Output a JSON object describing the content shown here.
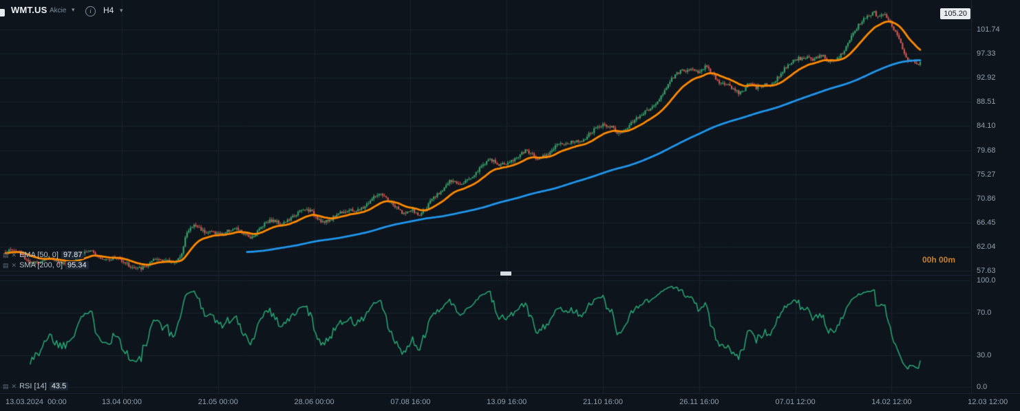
{
  "header": {
    "symbol": "WMT.US",
    "instrument_type": "Akcie",
    "timeframe": "H4"
  },
  "price_badge": "105.20",
  "countdown": "00h 00m",
  "legend": {
    "ema": {
      "label": "EMA [50, 0]",
      "value": "97.87"
    },
    "sma": {
      "label": "SMA [200, 0]",
      "value": "95.34"
    },
    "rsi": {
      "label": "RSI [14]",
      "value": "43.5"
    }
  },
  "colors": {
    "background": "#0d141c",
    "grid": "#1a222c",
    "axis_text": "#93a0ac",
    "candle_up": "#39a26a",
    "candle_down": "#d25750",
    "ema": "#ff8a00",
    "sma": "#1f97ee",
    "rsi": "#27a877",
    "countdown": "#c9802a",
    "badge_bg": "#e9edf1",
    "badge_text": "#10161d"
  },
  "chart_data": {
    "type": "candlestick",
    "symbol": "WMT.US",
    "timeframe": "H4",
    "title": "WMT.US Akcie H4 with EMA(50), SMA(200) and RSI(14)",
    "grid": true,
    "legend_position": "bottom-left overlays",
    "y_ticks": [
      "101.74",
      "97.33",
      "92.92",
      "88.51",
      "84.10",
      "79.68",
      "75.27",
      "70.86",
      "66.45",
      "62.04",
      "57.63"
    ],
    "ylim": [
      57.63,
      105.6
    ],
    "x_ticks": [
      "13.03.2024  00:00",
      "13.04 00:00",
      "21.05 00:00",
      "28.06 00:00",
      "07.08 16:00",
      "13.09 16:00",
      "21.10 16:00",
      "26.11 16:00",
      "07.01 12:00",
      "14.02 12:00",
      "12.03 12:00"
    ],
    "high_marker": 105.2,
    "data_extends_to_x_fraction": 0.948,
    "price_keyframes_format": "[fraction_of_time_axis, close_price]",
    "price_keyframes": [
      [
        0.0,
        60.0
      ],
      [
        0.015,
        60.8
      ],
      [
        0.03,
        59.9
      ],
      [
        0.05,
        60.2
      ],
      [
        0.07,
        59.6
      ],
      [
        0.09,
        60.1
      ],
      [
        0.11,
        59.5
      ],
      [
        0.128,
        58.8
      ],
      [
        0.14,
        59.4
      ],
      [
        0.155,
        59.8
      ],
      [
        0.17,
        59.5
      ],
      [
        0.181,
        59.9
      ],
      [
        0.187,
        63.6
      ],
      [
        0.195,
        64.6
      ],
      [
        0.205,
        64.1
      ],
      [
        0.215,
        65.0
      ],
      [
        0.225,
        64.5
      ],
      [
        0.24,
        65.6
      ],
      [
        0.255,
        65.1
      ],
      [
        0.27,
        66.3
      ],
      [
        0.285,
        66.0
      ],
      [
        0.3,
        67.2
      ],
      [
        0.315,
        67.8
      ],
      [
        0.33,
        67.3
      ],
      [
        0.345,
        68.5
      ],
      [
        0.36,
        69.3
      ],
      [
        0.375,
        70.2
      ],
      [
        0.385,
        70.6
      ],
      [
        0.395,
        69.8
      ],
      [
        0.405,
        68.9
      ],
      [
        0.415,
        67.6
      ],
      [
        0.421,
        68.2
      ],
      [
        0.428,
        67.1
      ],
      [
        0.435,
        69.2
      ],
      [
        0.442,
        71.8
      ],
      [
        0.45,
        73.2
      ],
      [
        0.46,
        74.2
      ],
      [
        0.47,
        73.6
      ],
      [
        0.48,
        74.8
      ],
      [
        0.49,
        75.8
      ],
      [
        0.5,
        76.6
      ],
      [
        0.51,
        76.1
      ],
      [
        0.52,
        77.4
      ],
      [
        0.53,
        78.6
      ],
      [
        0.54,
        79.5
      ],
      [
        0.55,
        79.0
      ],
      [
        0.56,
        80.2
      ],
      [
        0.57,
        80.8
      ],
      [
        0.58,
        80.3
      ],
      [
        0.59,
        80.9
      ],
      [
        0.6,
        81.6
      ],
      [
        0.61,
        82.4
      ],
      [
        0.62,
        83.2
      ],
      [
        0.628,
        84.0
      ],
      [
        0.635,
        83.4
      ],
      [
        0.645,
        84.6
      ],
      [
        0.655,
        86.0
      ],
      [
        0.665,
        87.5
      ],
      [
        0.672,
        89.0
      ],
      [
        0.68,
        90.2
      ],
      [
        0.688,
        91.5
      ],
      [
        0.695,
        92.6
      ],
      [
        0.703,
        93.4
      ],
      [
        0.71,
        94.2
      ],
      [
        0.718,
        93.6
      ],
      [
        0.725,
        94.4
      ],
      [
        0.732,
        93.0
      ],
      [
        0.74,
        92.0
      ],
      [
        0.748,
        92.9
      ],
      [
        0.755,
        91.8
      ],
      [
        0.762,
        90.8
      ],
      [
        0.77,
        91.8
      ],
      [
        0.778,
        91.3
      ],
      [
        0.787,
        92.2
      ],
      [
        0.795,
        91.7
      ],
      [
        0.8,
        92.2
      ],
      [
        0.808,
        93.4
      ],
      [
        0.815,
        94.8
      ],
      [
        0.822,
        96.2
      ],
      [
        0.83,
        96.8
      ],
      [
        0.838,
        96.1
      ],
      [
        0.845,
        97.0
      ],
      [
        0.852,
        96.3
      ],
      [
        0.86,
        97.4
      ],
      [
        0.868,
        98.8
      ],
      [
        0.875,
        100.4
      ],
      [
        0.882,
        101.8
      ],
      [
        0.888,
        103.0
      ],
      [
        0.895,
        104.1
      ],
      [
        0.9,
        104.8
      ],
      [
        0.905,
        103.8
      ],
      [
        0.91,
        104.3
      ],
      [
        0.915,
        102.6
      ],
      [
        0.92,
        100.8
      ],
      [
        0.925,
        99.0
      ],
      [
        0.93,
        97.6
      ],
      [
        0.935,
        95.9
      ],
      [
        0.94,
        96.9
      ],
      [
        0.945,
        96.0
      ],
      [
        0.948,
        96.4
      ]
    ],
    "overlays": [
      {
        "name": "EMA 50",
        "label": "EMA [50, 0]",
        "type": "line",
        "color_key": "ema",
        "last_value": 97.87
      },
      {
        "name": "SMA 200",
        "label": "SMA [200, 0]",
        "type": "line",
        "color_key": "sma",
        "last_value": 95.34
      }
    ],
    "lower_pane": {
      "name": "RSI 14",
      "label": "RSI [14]",
      "type": "line",
      "color_key": "rsi",
      "last_value": 43.5,
      "range": [
        0,
        100
      ],
      "y_ticks": [
        "100.0",
        "70.0",
        "30.0",
        "0.0"
      ]
    }
  }
}
